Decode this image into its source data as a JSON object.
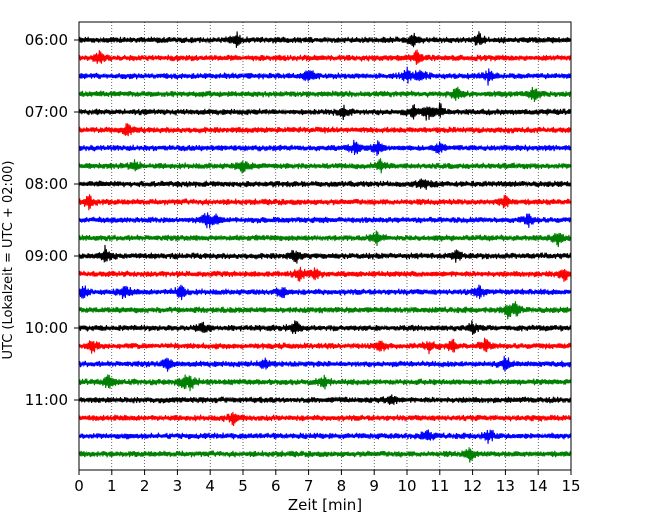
{
  "chart_data": {
    "type": "line",
    "title": "",
    "xlabel": "Zeit  [min]",
    "ylabel": "UTC (Lokalzeit = UTC + 02:00)",
    "xlim": [
      0,
      15
    ],
    "x_ticks": [
      "0",
      "1",
      "2",
      "3",
      "4",
      "5",
      "6",
      "7",
      "8",
      "9",
      "10",
      "11",
      "12",
      "13",
      "14",
      "15"
    ],
    "y_ticks": [
      "06:00",
      "07:00",
      "08:00",
      "09:00",
      "10:00",
      "11:00"
    ],
    "grid": "vertical dotted at each minute",
    "rows_per_hour": 4,
    "row_minutes": 15,
    "row_colors": [
      "#000000",
      "#ff0000",
      "#0000ff",
      "#008000"
    ],
    "rows": [
      {
        "start": "06:00",
        "color": "black",
        "events": [
          4.8,
          12.2,
          10.2
        ]
      },
      {
        "start": "06:15",
        "color": "red",
        "events": [
          0.6,
          10.3
        ]
      },
      {
        "start": "06:30",
        "color": "blue",
        "events": [
          7.0,
          10.0,
          10.4,
          12.5
        ]
      },
      {
        "start": "06:45",
        "color": "green",
        "events": [
          11.5,
          13.9
        ]
      },
      {
        "start": "07:00",
        "color": "black",
        "events": [
          8.1,
          10.2,
          10.6,
          11.0
        ]
      },
      {
        "start": "07:15",
        "color": "red",
        "events": [
          1.5
        ]
      },
      {
        "start": "07:30",
        "color": "blue",
        "events": [
          8.4,
          9.1,
          11.0
        ]
      },
      {
        "start": "07:45",
        "color": "green",
        "events": [
          1.7,
          5.0,
          9.2
        ]
      },
      {
        "start": "08:00",
        "color": "black",
        "events": [
          10.5
        ]
      },
      {
        "start": "08:15",
        "color": "red",
        "events": [
          0.3,
          13.0
        ]
      },
      {
        "start": "08:30",
        "color": "blue",
        "events": [
          3.9,
          4.1,
          13.7
        ]
      },
      {
        "start": "08:45",
        "color": "green",
        "events": [
          9.1,
          14.6
        ]
      },
      {
        "start": "09:00",
        "color": "black",
        "events": [
          0.8,
          6.6,
          11.5
        ]
      },
      {
        "start": "09:15",
        "color": "red",
        "events": [
          6.7,
          7.2,
          14.8
        ]
      },
      {
        "start": "09:30",
        "color": "blue",
        "events": [
          0.1,
          1.4,
          3.1,
          6.2,
          12.2
        ]
      },
      {
        "start": "09:45",
        "color": "green",
        "events": [
          13.1,
          13.3
        ]
      },
      {
        "start": "10:00",
        "color": "black",
        "events": [
          3.8,
          6.6,
          12.0
        ]
      },
      {
        "start": "10:15",
        "color": "red",
        "events": [
          0.4,
          9.2,
          10.7,
          11.4,
          12.4
        ]
      },
      {
        "start": "10:30",
        "color": "blue",
        "events": [
          2.7,
          5.7,
          13.0
        ]
      },
      {
        "start": "10:45",
        "color": "green",
        "events": [
          0.9,
          3.2,
          3.4,
          7.5
        ]
      },
      {
        "start": "11:00",
        "color": "black",
        "events": [
          9.5
        ]
      },
      {
        "start": "11:15",
        "color": "red",
        "events": [
          4.7
        ]
      },
      {
        "start": "11:30",
        "color": "blue",
        "events": [
          10.6,
          12.5
        ]
      },
      {
        "start": "11:45",
        "color": "green",
        "events": [
          11.9
        ]
      }
    ]
  }
}
